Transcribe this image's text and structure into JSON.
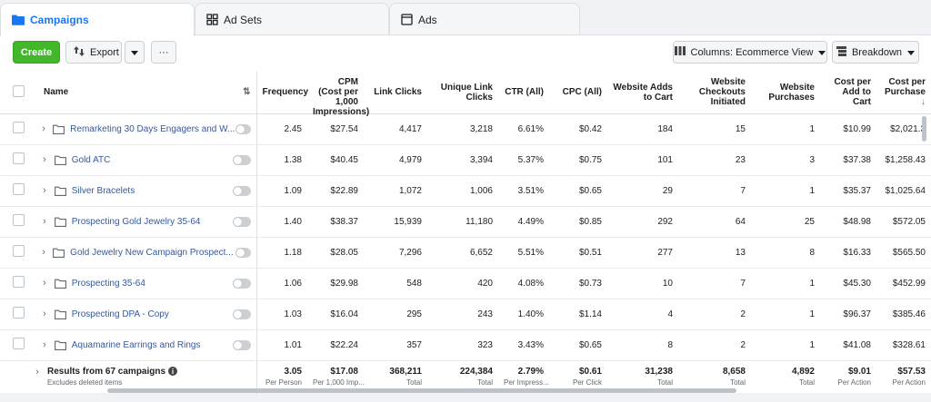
{
  "tabs": [
    {
      "label": "Campaigns"
    },
    {
      "label": "Ad Sets"
    },
    {
      "label": "Ads"
    }
  ],
  "toolbar": {
    "create_label": "Create",
    "export_label": "Export",
    "more_label": "···",
    "columns_label": "Columns: Ecommerce View",
    "breakdown_label": "Breakdown"
  },
  "colors": {
    "accent": "#1877f2",
    "create": "#42b72a",
    "link": "#385898"
  },
  "columns": {
    "name": "Name",
    "frequency": "Frequency",
    "cpm": "CPM (Cost per 1,000 Impressions)",
    "link_clicks": "Link Clicks",
    "unique_link_clicks": "Unique Link Clicks",
    "ctr": "CTR (All)",
    "cpc": "CPC (All)",
    "adds_to_cart": "Website Adds to Cart",
    "checkouts": "Website Checkouts Initiated",
    "purchases": "Website Purchases",
    "cost_add_cart": "Cost per Add to Cart",
    "cost_purchase": "Cost per Purchase"
  },
  "rows": [
    {
      "name": "Remarketing 30 Days Engagers and W...",
      "frequency": "2.45",
      "cpm": "$27.54",
      "link_clicks": "4,417",
      "unique_link_clicks": "3,218",
      "ctr": "6.61%",
      "cpc": "$0.42",
      "adds_to_cart": "184",
      "checkouts": "15",
      "purchases": "1",
      "cost_add_cart": "$10.99",
      "cost_purchase": "$2,021.3"
    },
    {
      "name": "Gold ATC",
      "frequency": "1.38",
      "cpm": "$40.45",
      "link_clicks": "4,979",
      "unique_link_clicks": "3,394",
      "ctr": "5.37%",
      "cpc": "$0.75",
      "adds_to_cart": "101",
      "checkouts": "23",
      "purchases": "3",
      "cost_add_cart": "$37.38",
      "cost_purchase": "$1,258.43"
    },
    {
      "name": "Silver Bracelets",
      "frequency": "1.09",
      "cpm": "$22.89",
      "link_clicks": "1,072",
      "unique_link_clicks": "1,006",
      "ctr": "3.51%",
      "cpc": "$0.65",
      "adds_to_cart": "29",
      "checkouts": "7",
      "purchases": "1",
      "cost_add_cart": "$35.37",
      "cost_purchase": "$1,025.64"
    },
    {
      "name": "Prospecting Gold Jewelry 35-64",
      "frequency": "1.40",
      "cpm": "$38.37",
      "link_clicks": "15,939",
      "unique_link_clicks": "11,180",
      "ctr": "4.49%",
      "cpc": "$0.85",
      "adds_to_cart": "292",
      "checkouts": "64",
      "purchases": "25",
      "cost_add_cart": "$48.98",
      "cost_purchase": "$572.05"
    },
    {
      "name": "Gold Jewelry New Campaign Prospect...",
      "frequency": "1.18",
      "cpm": "$28.05",
      "link_clicks": "7,296",
      "unique_link_clicks": "6,652",
      "ctr": "5.51%",
      "cpc": "$0.51",
      "adds_to_cart": "277",
      "checkouts": "13",
      "purchases": "8",
      "cost_add_cart": "$16.33",
      "cost_purchase": "$565.50"
    },
    {
      "name": "Prospecting 35-64",
      "frequency": "1.06",
      "cpm": "$29.98",
      "link_clicks": "548",
      "unique_link_clicks": "420",
      "ctr": "4.08%",
      "cpc": "$0.73",
      "adds_to_cart": "10",
      "checkouts": "7",
      "purchases": "1",
      "cost_add_cart": "$45.30",
      "cost_purchase": "$452.99"
    },
    {
      "name": "Prospecting DPA - Copy",
      "frequency": "1.03",
      "cpm": "$16.04",
      "link_clicks": "295",
      "unique_link_clicks": "243",
      "ctr": "1.40%",
      "cpc": "$1.14",
      "adds_to_cart": "4",
      "checkouts": "2",
      "purchases": "1",
      "cost_add_cart": "$96.37",
      "cost_purchase": "$385.46"
    },
    {
      "name": "Aquamarine Earrings and Rings",
      "frequency": "1.01",
      "cpm": "$22.24",
      "link_clicks": "357",
      "unique_link_clicks": "323",
      "ctr": "3.43%",
      "cpc": "$0.65",
      "adds_to_cart": "8",
      "checkouts": "2",
      "purchases": "1",
      "cost_add_cart": "$41.08",
      "cost_purchase": "$328.61"
    }
  ],
  "totals": {
    "title": "Results from 67 campaigns",
    "subtitle": "Excludes deleted items",
    "frequency": {
      "value": "3.05",
      "sub": "Per Person"
    },
    "cpm": {
      "value": "$17.08",
      "sub": "Per 1,000 Imp..."
    },
    "link_clicks": {
      "value": "368,211",
      "sub": "Total"
    },
    "unique_link_clicks": {
      "value": "224,384",
      "sub": "Total"
    },
    "ctr": {
      "value": "2.79%",
      "sub": "Per Impress..."
    },
    "cpc": {
      "value": "$0.61",
      "sub": "Per Click"
    },
    "adds_to_cart": {
      "value": "31,238",
      "sub": "Total"
    },
    "checkouts": {
      "value": "8,658",
      "sub": "Total"
    },
    "purchases": {
      "value": "4,892",
      "sub": "Total"
    },
    "cost_add_cart": {
      "value": "$9.01",
      "sub": "Per Action"
    },
    "cost_purchase": {
      "value": "$57.53",
      "sub": "Per Action"
    }
  }
}
